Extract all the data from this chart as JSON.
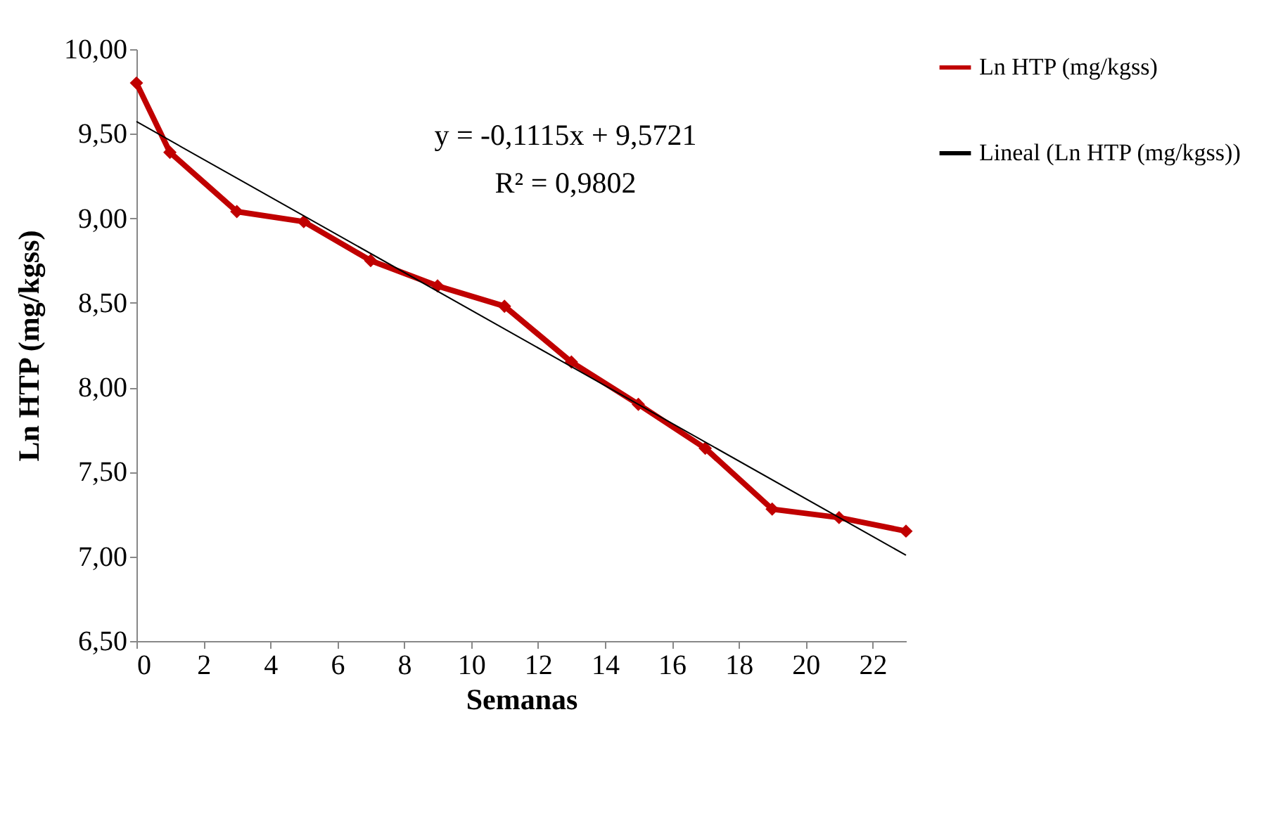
{
  "chart_data": {
    "type": "line",
    "xlabel": "Semanas",
    "ylabel": "Ln HTP (mg/kgss)",
    "xlim": [
      0,
      23
    ],
    "xticks": [
      0,
      2,
      4,
      6,
      8,
      10,
      12,
      14,
      16,
      18,
      20,
      22
    ],
    "ylim": [
      6.5,
      10
    ],
    "yticks": [
      {
        "value": 6.5,
        "label": "6,50"
      },
      {
        "value": 7,
        "label": "7,00"
      },
      {
        "value": 7.5,
        "label": "7,50"
      },
      {
        "value": 8,
        "label": "8,00"
      },
      {
        "value": 8.5,
        "label": "8,50"
      },
      {
        "value": 9,
        "label": "9,00"
      },
      {
        "value": 9.5,
        "label": "9,50"
      },
      {
        "value": 10,
        "label": "10,00"
      }
    ],
    "grid": false,
    "legend": "right",
    "annotations": [
      "y = -0,1115x + 9,5721",
      "R² = 0,9802"
    ],
    "series": [
      {
        "name": "Ln HTP (mg/kgss)",
        "color": "#c00000",
        "marker": "diamond",
        "x": [
          0,
          1,
          3,
          5,
          7,
          9,
          11,
          13,
          15,
          17,
          19,
          21,
          23
        ],
        "values": [
          9.8,
          9.39,
          9.04,
          8.98,
          8.75,
          8.6,
          8.48,
          8.15,
          7.9,
          7.64,
          7.28,
          7.23,
          7.15
        ]
      },
      {
        "name": "Lineal (Ln HTP (mg/kgss))",
        "color": "#000000",
        "marker": "none",
        "x": [
          0,
          23
        ],
        "values": [
          9.5721,
          7.0076
        ]
      }
    ]
  }
}
